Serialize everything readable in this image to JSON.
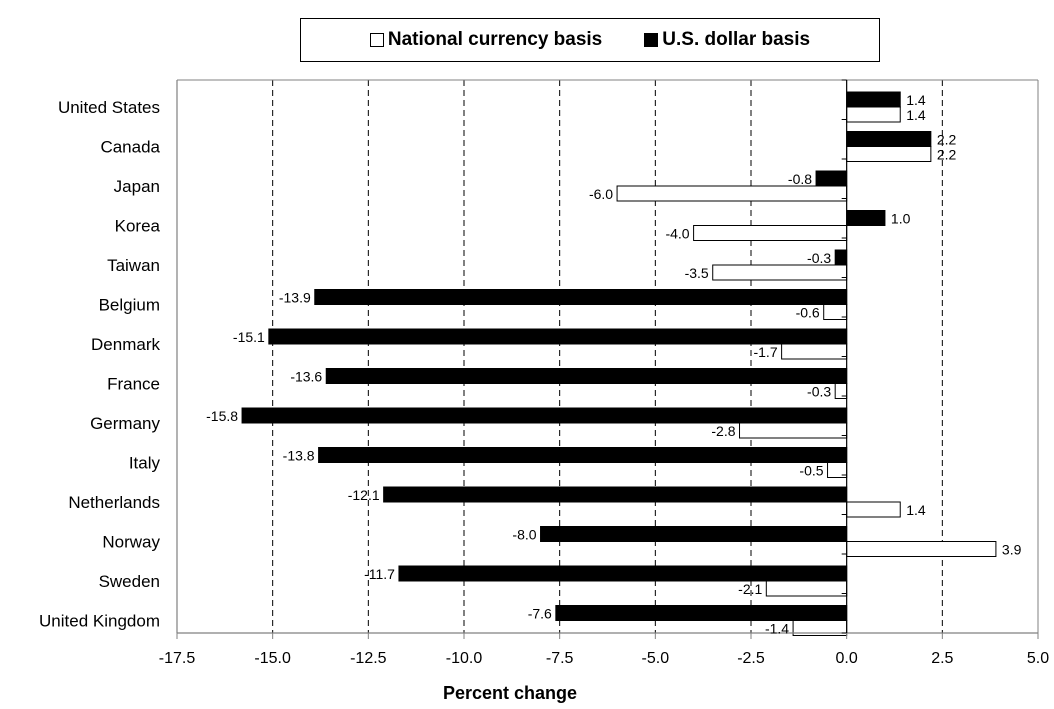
{
  "chart_data": {
    "type": "bar",
    "orientation": "horizontal",
    "categories": [
      "United States",
      "Canada",
      "Japan",
      "Korea",
      "Taiwan",
      "Belgium",
      "Denmark",
      "France",
      "Germany",
      "Italy",
      "Netherlands",
      "Norway",
      "Sweden",
      "United Kingdom"
    ],
    "series": [
      {
        "name": "National currency basis",
        "color": "#ffffff",
        "values": [
          1.4,
          2.2,
          -6.0,
          -4.0,
          -3.5,
          -0.6,
          -1.7,
          -0.3,
          -2.8,
          -0.5,
          1.4,
          3.9,
          -2.1,
          -1.4
        ]
      },
      {
        "name": "U.S. dollar basis",
        "color": "#000000",
        "values": [
          1.4,
          2.2,
          -0.8,
          1.0,
          -0.3,
          -13.9,
          -15.1,
          -13.6,
          -15.8,
          -13.8,
          -12.1,
          -8.0,
          -11.7,
          -7.6
        ]
      }
    ],
    "xlabel": "Percent change",
    "xlim": [
      -17.5,
      5.0
    ],
    "xticks": [
      "-17.5",
      "-15.0",
      "-12.5",
      "-10.0",
      "-7.5",
      "-5.0",
      "-2.5",
      "0.0",
      "2.5",
      "5.0"
    ],
    "grid": "vertical dashed",
    "legend_position": "top"
  }
}
